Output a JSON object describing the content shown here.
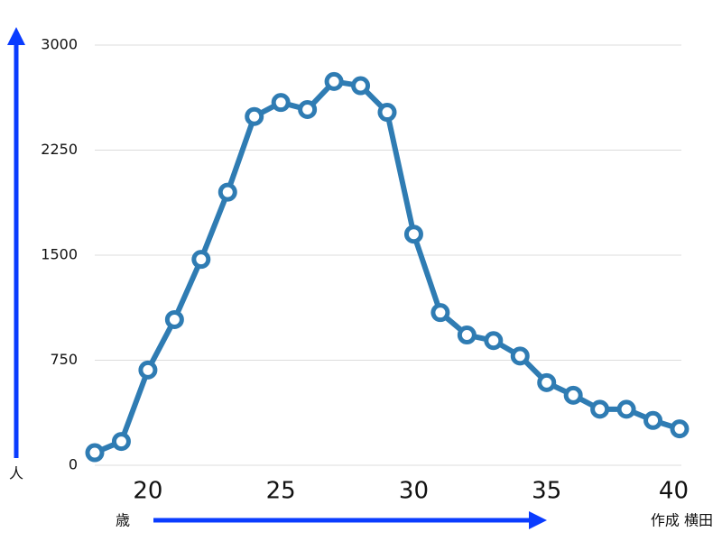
{
  "chart_data": {
    "type": "line",
    "x_label": "歳",
    "y_label": "人",
    "credit": "作成 横田",
    "x": [
      18,
      19,
      20,
      21,
      22,
      23,
      24,
      25,
      26,
      27,
      28,
      29,
      30,
      31,
      32,
      33,
      34,
      35,
      36,
      37,
      38,
      39,
      40
    ],
    "series": [
      {
        "color": "#2f7cb3",
        "values": [
          90,
          170,
          680,
          1040,
          1470,
          1950,
          2490,
          2590,
          2540,
          2740,
          2710,
          2520,
          1650,
          1090,
          930,
          890,
          780,
          590,
          500,
          400,
          400,
          320,
          260
        ]
      }
    ],
    "xlim": [
      18,
      40
    ],
    "xticks": [
      20,
      25,
      30,
      35,
      40
    ],
    "ylim": [
      0,
      3000
    ],
    "yticks": [
      0,
      750,
      1500,
      2250,
      3000
    ],
    "grid": true
  }
}
